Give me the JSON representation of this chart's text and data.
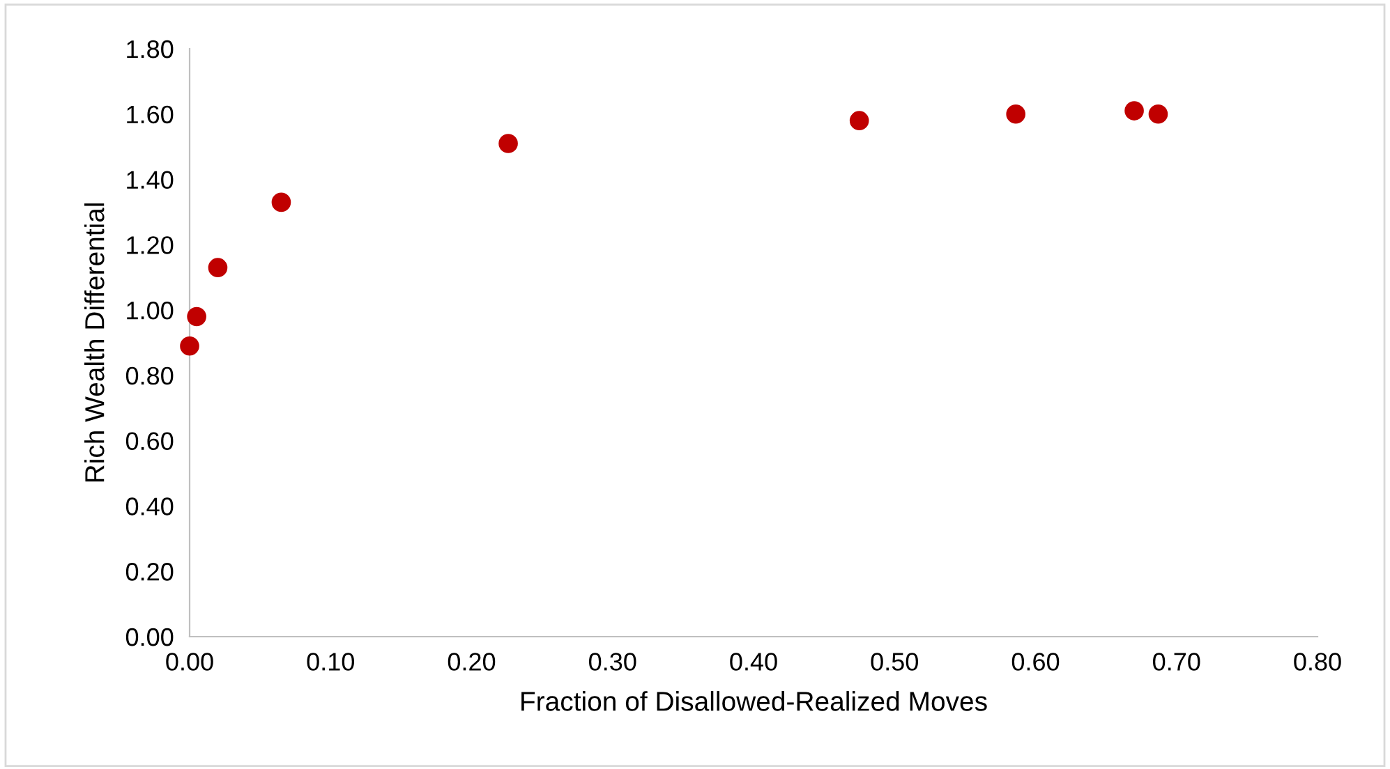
{
  "chart_data": {
    "type": "scatter",
    "xlabel": "Fraction of Disallowed-Realized Moves",
    "ylabel": "Rich Wealth Differential",
    "x": [
      0.0,
      0.005,
      0.02,
      0.065,
      0.226,
      0.475,
      0.586,
      0.67,
      0.687
    ],
    "series": [
      {
        "color": "#c00000",
        "values": [
          0.89,
          0.98,
          1.13,
          1.33,
          1.51,
          1.58,
          1.6,
          1.61,
          1.6
        ]
      }
    ],
    "xlim": [
      0,
      0.8
    ],
    "ylim": [
      0,
      1.8
    ],
    "xticks": [
      {
        "value": 0,
        "label": "0.00"
      },
      {
        "value": 0.1,
        "label": "0.10"
      },
      {
        "value": 0.2,
        "label": "0.20"
      },
      {
        "value": 0.3,
        "label": "0.30"
      },
      {
        "value": 0.4,
        "label": "0.40"
      },
      {
        "value": 0.5,
        "label": "0.50"
      },
      {
        "value": 0.6,
        "label": "0.60"
      },
      {
        "value": 0.7,
        "label": "0.70"
      },
      {
        "value": 0.8,
        "label": "0.80"
      }
    ],
    "yticks": [
      {
        "value": 0,
        "label": "0.00"
      },
      {
        "value": 0.2,
        "label": "0.20"
      },
      {
        "value": 0.4,
        "label": "0.40"
      },
      {
        "value": 0.6,
        "label": "0.60"
      },
      {
        "value": 0.8,
        "label": "0.80"
      },
      {
        "value": 1.0,
        "label": "1.00"
      },
      {
        "value": 1.2,
        "label": "1.20"
      },
      {
        "value": 1.4,
        "label": "1.40"
      },
      {
        "value": 1.6,
        "label": "1.60"
      },
      {
        "value": 1.8,
        "label": "1.80"
      }
    ],
    "grid": false,
    "legend": false,
    "marker": "circle"
  }
}
